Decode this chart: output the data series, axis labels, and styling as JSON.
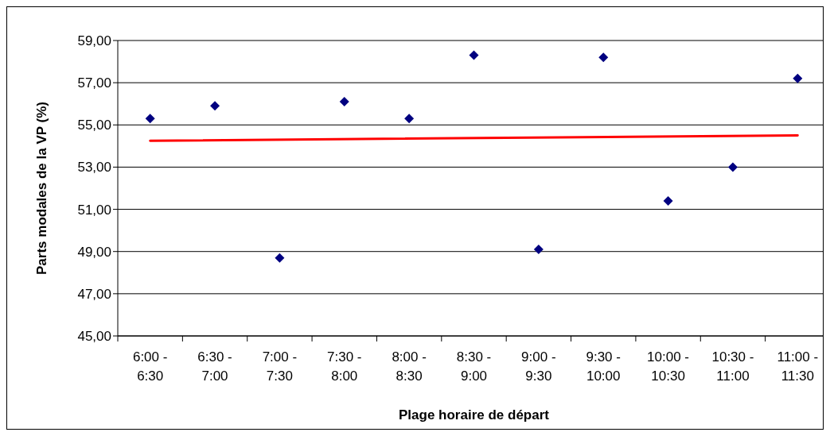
{
  "chart_data": {
    "type": "scatter",
    "xlabel": "Plage horaire de départ",
    "ylabel": "Parts modales de la VP (%)",
    "categories": [
      "6:00 - 6:30",
      "6:30 - 7:00",
      "7:00 - 7:30",
      "7:30 - 8:00",
      "8:00 - 8:30",
      "8:30 - 9:00",
      "9:00 - 9:30",
      "9:30 - 10:00",
      "10:00 - 10:30",
      "10:30 - 11:00",
      "11:00 - 11:30"
    ],
    "series": [
      {
        "color": "#000080",
        "marker": "diamond",
        "values": [
          55.3,
          55.9,
          48.7,
          56.1,
          55.3,
          58.3,
          49.1,
          58.2,
          51.4,
          53.0,
          57.2
        ]
      },
      {
        "type": "line",
        "color": "#ff0000",
        "x": [
          "6:00 - 6:30",
          "11:00 - 11:30"
        ],
        "values": [
          54.25,
          54.5
        ]
      }
    ],
    "ylim": [
      45,
      59
    ],
    "yticks": [
      {
        "value": 45,
        "label": "45,00"
      },
      {
        "value": 47,
        "label": "47,00"
      },
      {
        "value": 49,
        "label": "49,00"
      },
      {
        "value": 51,
        "label": "51,00"
      },
      {
        "value": 53,
        "label": "53,00"
      },
      {
        "value": 55,
        "label": "55,00"
      },
      {
        "value": 57,
        "label": "57,00"
      },
      {
        "value": 59,
        "label": "59,00"
      }
    ],
    "grid": "y"
  }
}
